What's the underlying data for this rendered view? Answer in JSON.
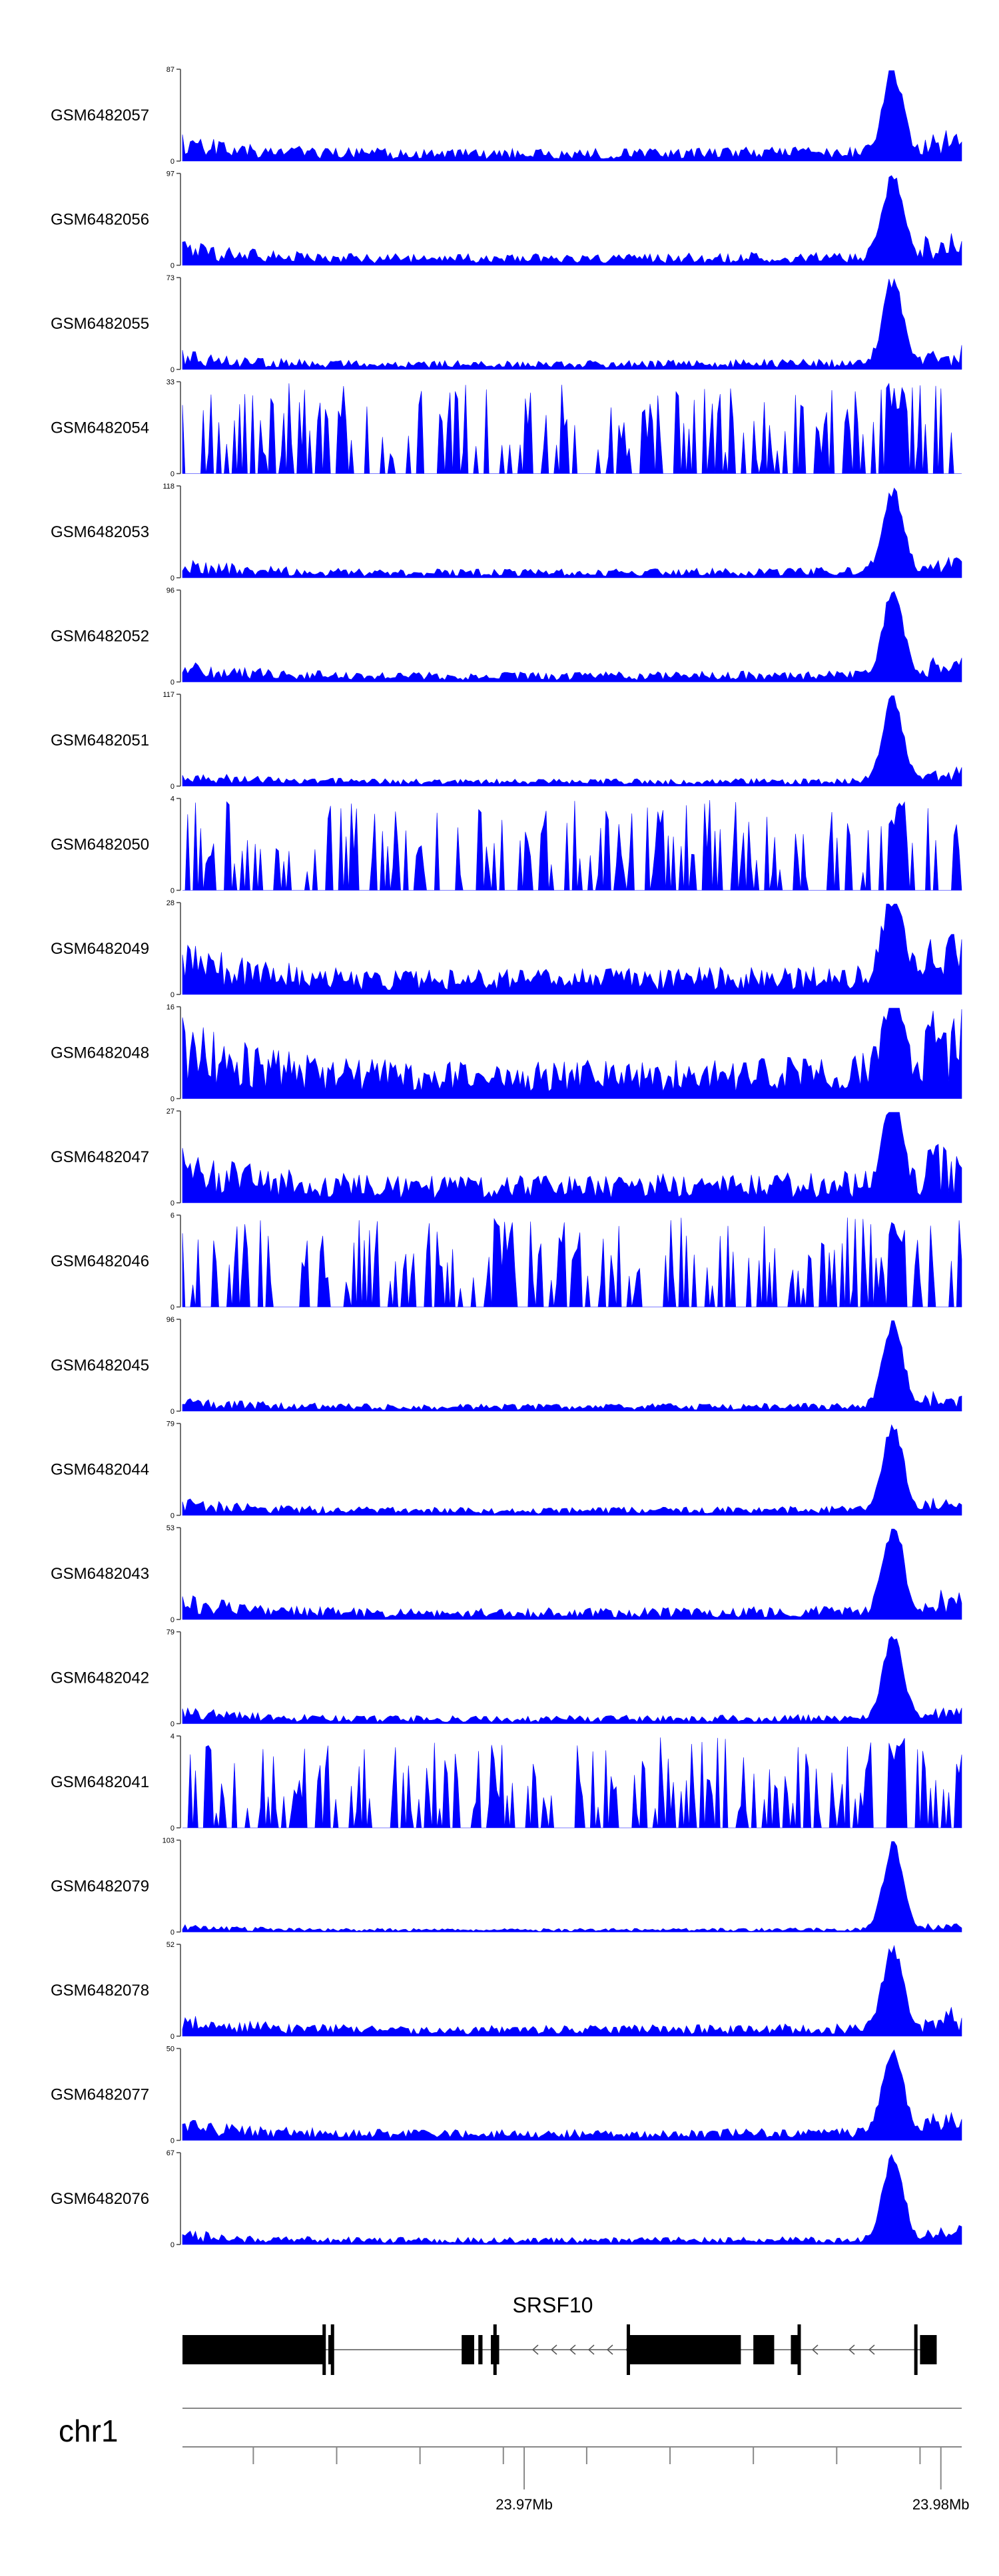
{
  "chart_data": {
    "type": "area",
    "color": "#0000ff",
    "chromosome": "chr1",
    "x_range": [
      23.9618,
      23.9805
    ],
    "x_tick_labels": [
      {
        "value": 23.97,
        "label": "23.97Mb"
      },
      {
        "value": 23.98,
        "label": "23.98Mb"
      }
    ],
    "minor_ticks": [
      23.9635,
      23.9655,
      23.9675,
      23.9695,
      23.9715,
      23.9735,
      23.9755,
      23.9775,
      23.9795
    ],
    "gene": {
      "name": "SRSF10",
      "strand": "-",
      "exons": [
        [
          23.9618,
          23.9652
        ],
        [
          23.9653,
          23.9654
        ],
        [
          23.9685,
          23.9688
        ],
        [
          23.9689,
          23.969
        ],
        [
          23.9692,
          23.9694
        ],
        [
          23.9725,
          23.9752
        ],
        [
          23.9755,
          23.976
        ],
        [
          23.9764,
          23.9766
        ],
        [
          23.9795,
          23.9799
        ]
      ],
      "exon_bars": [
        23.9652,
        23.9654,
        23.9693,
        23.9725,
        23.9766,
        23.9794
      ]
    },
    "series": [
      {
        "name": "GSM6482057",
        "ymax": 87,
        "peak": 87,
        "noise": 0.14,
        "seed": 11
      },
      {
        "name": "GSM6482056",
        "ymax": 97,
        "peak": 97,
        "noise": 0.13,
        "seed": 23
      },
      {
        "name": "GSM6482055",
        "ymax": 73,
        "peak": 73,
        "noise": 0.1,
        "seed": 37
      },
      {
        "name": "GSM6482054",
        "ymax": 33,
        "peak": 33,
        "noise": 0.18,
        "seed": 41,
        "sparse": true
      },
      {
        "name": "GSM6482053",
        "ymax": 118,
        "peak": 115,
        "noise": 0.1,
        "seed": 53
      },
      {
        "name": "GSM6482052",
        "ymax": 96,
        "peak": 96,
        "noise": 0.11,
        "seed": 67
      },
      {
        "name": "GSM6482051",
        "ymax": 117,
        "peak": 117,
        "noise": 0.08,
        "seed": 71
      },
      {
        "name": "GSM6482050",
        "ymax": 4,
        "peak": 4,
        "noise": 0.55,
        "seed": 83,
        "sparse": true
      },
      {
        "name": "GSM6482049",
        "ymax": 28,
        "peak": 28,
        "noise": 0.28,
        "seed": 97
      },
      {
        "name": "GSM6482048",
        "ymax": 16,
        "peak": 16,
        "noise": 0.42,
        "seed": 101
      },
      {
        "name": "GSM6482047",
        "ymax": 27,
        "peak": 27,
        "noise": 0.3,
        "seed": 113
      },
      {
        "name": "GSM6482046",
        "ymax": 6,
        "peak": 6,
        "noise": 0.45,
        "seed": 127,
        "sparse": true
      },
      {
        "name": "GSM6482045",
        "ymax": 96,
        "peak": 96,
        "noise": 0.08,
        "seed": 131
      },
      {
        "name": "GSM6482044",
        "ymax": 79,
        "peak": 79,
        "noise": 0.09,
        "seed": 149
      },
      {
        "name": "GSM6482043",
        "ymax": 53,
        "peak": 53,
        "noise": 0.13,
        "seed": 151
      },
      {
        "name": "GSM6482042",
        "ymax": 79,
        "peak": 79,
        "noise": 0.09,
        "seed": 163
      },
      {
        "name": "GSM6482041",
        "ymax": 4,
        "peak": 4,
        "noise": 0.55,
        "seed": 173,
        "sparse": true
      },
      {
        "name": "GSM6482079",
        "ymax": 103,
        "peak": 103,
        "noise": 0.04,
        "seed": 181
      },
      {
        "name": "GSM6482078",
        "ymax": 52,
        "peak": 52,
        "noise": 0.12,
        "seed": 193
      },
      {
        "name": "GSM6482077",
        "ymax": 50,
        "peak": 50,
        "noise": 0.12,
        "seed": 199
      },
      {
        "name": "GSM6482076",
        "ymax": 67,
        "peak": 67,
        "noise": 0.08,
        "seed": 211
      }
    ]
  }
}
